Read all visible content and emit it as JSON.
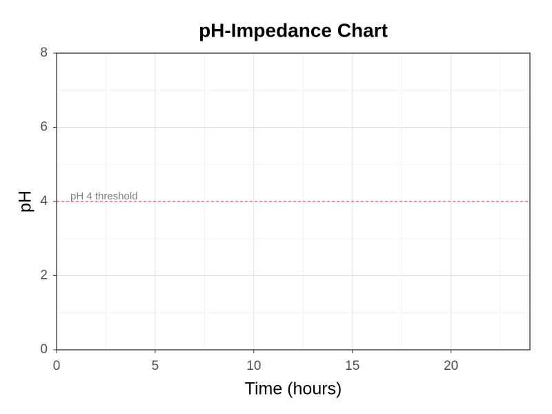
{
  "chart_data": {
    "type": "line",
    "title": "pH-Impedance Chart",
    "x_label": "Time (hours)",
    "y_label": "pH",
    "series": [],
    "xlim": [
      0,
      24
    ],
    "xticks": [
      0,
      5,
      10,
      15,
      20
    ],
    "xminorticks": [
      2.5,
      7.5,
      12.5,
      17.5,
      22.5
    ],
    "ylim": [
      0,
      8
    ],
    "yticks": [
      0,
      2,
      4,
      6,
      8
    ],
    "yminorticks": [
      1,
      3,
      5,
      7
    ],
    "grid": true,
    "hline": {
      "y": 4,
      "x": 0.7,
      "color": "#d62728",
      "label": "pH 4 threshold"
    }
  }
}
